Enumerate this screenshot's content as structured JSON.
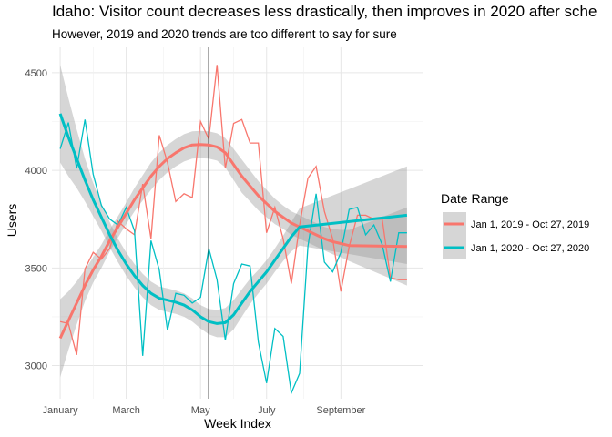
{
  "chart_data": {
    "type": "line",
    "title": "Idaho: Visitor count decreases less drastically, then improves in 2020 after sche",
    "subtitle": "However, 2019 and 2020 trends are too different to say for sure",
    "xlabel": "Week Index",
    "ylabel": "Users",
    "x_tick_labels": [
      "January",
      "March",
      "May",
      "July",
      "September"
    ],
    "x_tick_weeks": [
      1,
      9,
      18,
      26,
      35
    ],
    "xlim": [
      0,
      45
    ],
    "ylim": [
      2830,
      4630
    ],
    "y_ticks": [
      3000,
      3500,
      4000,
      4500
    ],
    "y_tick_labels": [
      "3000",
      "3500",
      "4000",
      "4500"
    ],
    "grid": true,
    "vline_week": 19,
    "legend": {
      "title": "Date Range",
      "position": "right"
    },
    "series": [
      {
        "name": "Jan 1, 2019 - Oct 27, 2019",
        "color": "#F8766D",
        "x": [
          1,
          2,
          3,
          4,
          5,
          6,
          7,
          8,
          9,
          10,
          11,
          12,
          13,
          14,
          15,
          16,
          17,
          18,
          19,
          20,
          21,
          22,
          23,
          24,
          25,
          26,
          27,
          28,
          29,
          30,
          31,
          32,
          33,
          34,
          35,
          36,
          37,
          38,
          39,
          40,
          41,
          42,
          43
        ],
        "values": [
          3225,
          3215,
          3055,
          3495,
          3580,
          3545,
          3600,
          3740,
          3700,
          3670,
          3930,
          3650,
          4180,
          4040,
          3840,
          3880,
          3860,
          4250,
          4160,
          4540,
          4010,
          4240,
          4260,
          4140,
          4140,
          3680,
          3810,
          3650,
          3420,
          3720,
          3960,
          4020,
          3790,
          3650,
          3380,
          3610,
          3770,
          3770,
          3750,
          3750,
          3450,
          3440,
          3440
        ],
        "smooth": [
          3140,
          3230,
          3320,
          3410,
          3490,
          3560,
          3640,
          3710,
          3780,
          3850,
          3910,
          3970,
          4020,
          4060,
          4090,
          4115,
          4130,
          4132,
          4130,
          4120,
          4090,
          4030,
          3970,
          3920,
          3870,
          3830,
          3790,
          3760,
          3730,
          3710,
          3690,
          3670,
          3650,
          3635,
          3625,
          3615,
          3610
        ],
        "smooth_x": [
          1,
          2,
          3,
          4,
          5,
          6,
          7,
          8,
          9,
          10,
          11,
          12,
          13,
          14,
          15,
          16,
          17,
          18,
          19,
          20,
          21,
          22,
          23,
          24,
          25,
          26,
          27,
          28,
          29,
          30,
          31,
          32,
          33,
          34,
          35,
          36,
          43
        ],
        "band_halfwidth": [
          200,
          150,
          110,
          80,
          65,
          60,
          55,
          55,
          55,
          60,
          65,
          70,
          70,
          70,
          70,
          70,
          70,
          70,
          70,
          70,
          75,
          80,
          85,
          80,
          75,
          70,
          65,
          60,
          60,
          60,
          60,
          60,
          60,
          65,
          70,
          80,
          200
        ]
      },
      {
        "name": "Jan 1, 2020 - Oct 27, 2020",
        "color": "#00BFC4",
        "x": [
          1,
          2,
          3,
          4,
          5,
          6,
          7,
          8,
          9,
          10,
          11,
          12,
          13,
          14,
          15,
          16,
          17,
          18,
          19,
          20,
          21,
          22,
          23,
          24,
          25,
          26,
          27,
          28,
          29,
          30,
          31,
          32,
          33,
          34,
          35,
          36,
          37,
          38,
          39,
          40,
          41,
          42,
          43
        ],
        "values": [
          4110,
          4245,
          4010,
          4260,
          3980,
          3820,
          3750,
          3720,
          3810,
          3690,
          3050,
          3640,
          3490,
          3180,
          3370,
          3360,
          3320,
          3350,
          3600,
          3440,
          3130,
          3420,
          3520,
          3510,
          3120,
          2910,
          3190,
          3150,
          2860,
          2960,
          3610,
          3880,
          3530,
          3480,
          3580,
          3800,
          3810,
          3670,
          3720,
          3620,
          3430,
          3680,
          3680
        ],
        "smooth": [
          4290,
          4170,
          4060,
          3950,
          3850,
          3760,
          3670,
          3590,
          3520,
          3460,
          3410,
          3370,
          3345,
          3335,
          3325,
          3310,
          3285,
          3250,
          3225,
          3215,
          3220,
          3260,
          3320,
          3380,
          3430,
          3480,
          3540,
          3600,
          3660,
          3710,
          3770
        ],
        "smooth_x": [
          1,
          2,
          3,
          4,
          5,
          6,
          7,
          8,
          9,
          10,
          11,
          12,
          13,
          14,
          15,
          16,
          17,
          18,
          19,
          20,
          21,
          22,
          23,
          24,
          25,
          26,
          27,
          28,
          29,
          30,
          43
        ],
        "band_halfwidth": [
          250,
          200,
          150,
          110,
          85,
          70,
          65,
          60,
          60,
          60,
          60,
          60,
          60,
          60,
          60,
          60,
          60,
          60,
          65,
          70,
          75,
          75,
          70,
          65,
          60,
          60,
          60,
          65,
          75,
          95,
          250
        ]
      }
    ]
  }
}
